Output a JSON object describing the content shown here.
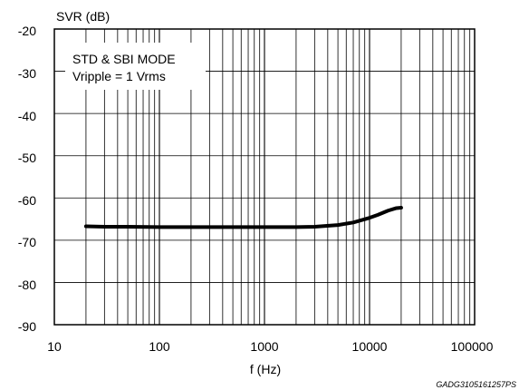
{
  "chart_data": {
    "type": "line",
    "title": "",
    "ylabel": "SVR (dB)",
    "xlabel": "f (Hz)",
    "xscale": "log",
    "xlim": [
      10,
      100000
    ],
    "ylim": [
      -90,
      -20
    ],
    "grid": true,
    "x_tick_labels": [
      "10",
      "100",
      "1000",
      "10000",
      "100000"
    ],
    "y_tick_labels": [
      "-20",
      "-30",
      "-40",
      "-50",
      "-60",
      "-70",
      "-80",
      "-90"
    ],
    "annotation_lines": [
      "STD & SBI MODE",
      "Vripple = 1 Vrms"
    ],
    "series": [
      {
        "x": [
          20,
          30,
          50,
          100,
          200,
          500,
          1000,
          2000,
          3000,
          5000,
          7000,
          10000,
          12000,
          15000,
          18000,
          20000
        ],
        "y": [
          -66.7,
          -66.8,
          -66.8,
          -66.9,
          -66.9,
          -66.9,
          -66.9,
          -66.9,
          -66.8,
          -66.4,
          -65.8,
          -64.7,
          -64.0,
          -63.0,
          -62.4,
          -62.3
        ]
      }
    ],
    "line_color": "#000000",
    "footer_code": "GADG3105161257PS"
  }
}
